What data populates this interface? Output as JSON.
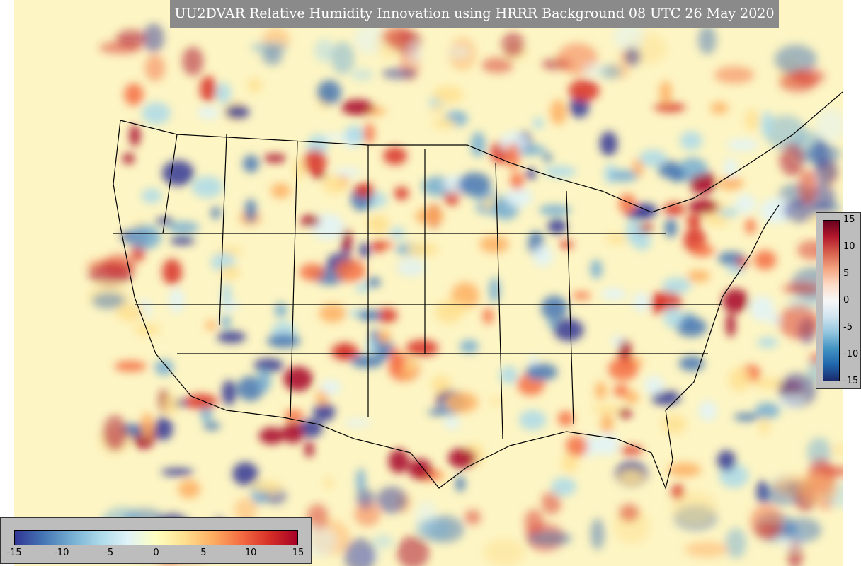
{
  "title": "UU2DVAR Relative Humidity Innovation using HRRR Background 08 UTC 26 May 2020",
  "vertical_colorbar": {
    "ticks": [
      15,
      10,
      5,
      0,
      -5,
      -10,
      -15
    ]
  },
  "horizontal_colorbar": {
    "ticks": [
      -15,
      -10,
      -5,
      0,
      5,
      10,
      15
    ]
  }
}
